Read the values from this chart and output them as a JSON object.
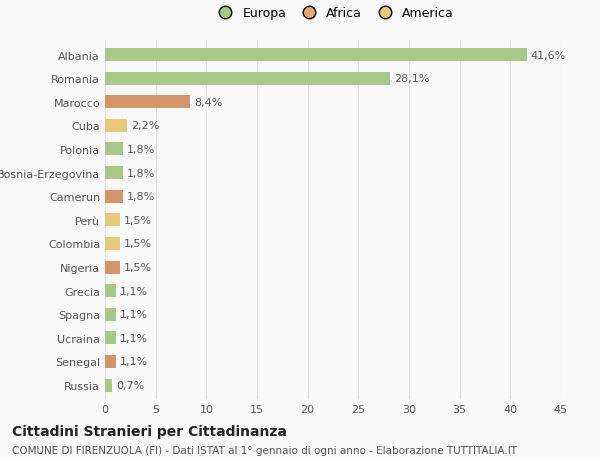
{
  "categories": [
    "Russia",
    "Senegal",
    "Ucraina",
    "Spagna",
    "Grecia",
    "Nigeria",
    "Colombia",
    "Perù",
    "Camerun",
    "Bosnia-Erzegovina",
    "Polonia",
    "Cuba",
    "Marocco",
    "Romania",
    "Albania"
  ],
  "values": [
    0.7,
    1.1,
    1.1,
    1.1,
    1.1,
    1.5,
    1.5,
    1.5,
    1.8,
    1.8,
    1.8,
    2.2,
    8.4,
    28.1,
    41.6
  ],
  "colors": [
    "#a8c888",
    "#d4956a",
    "#a8c888",
    "#a8c888",
    "#a8c888",
    "#d4956a",
    "#e8c87a",
    "#e8c87a",
    "#d4956a",
    "#a8c888",
    "#a8c888",
    "#e8c87a",
    "#d4956a",
    "#a8c888",
    "#a8c888"
  ],
  "labels": [
    "0,7%",
    "1,1%",
    "1,1%",
    "1,1%",
    "1,1%",
    "1,5%",
    "1,5%",
    "1,5%",
    "1,8%",
    "1,8%",
    "1,8%",
    "2,2%",
    "8,4%",
    "28,1%",
    "41,6%"
  ],
  "legend": [
    {
      "label": "Europa",
      "color": "#a8c888"
    },
    {
      "label": "Africa",
      "color": "#e8a870"
    },
    {
      "label": "America",
      "color": "#e8c87a"
    }
  ],
  "title": "Cittadini Stranieri per Cittadinanza",
  "subtitle": "COMUNE DI FIRENZUOLA (FI) - Dati ISTAT al 1° gennaio di ogni anno - Elaborazione TUTTITALIA.IT",
  "xlim": [
    0,
    45
  ],
  "xticks": [
    0,
    5,
    10,
    15,
    20,
    25,
    30,
    35,
    40,
    45
  ],
  "background_color": "#f9f9f9",
  "grid_color": "#e0e0e0",
  "bar_height": 0.55,
  "title_fontsize": 10,
  "subtitle_fontsize": 7.5,
  "tick_fontsize": 8,
  "label_fontsize": 8
}
